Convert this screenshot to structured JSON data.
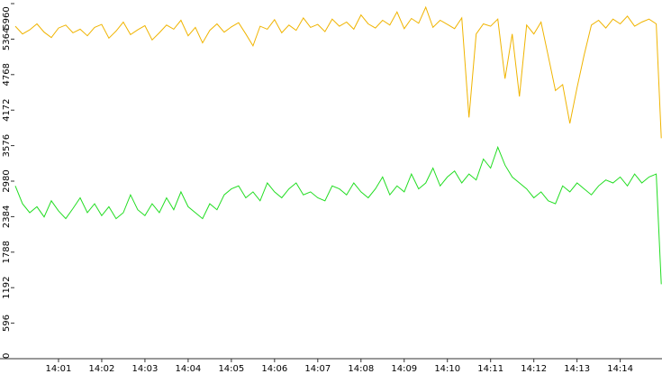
{
  "chart_data": {
    "type": "line",
    "x": [
      0,
      10,
      20,
      30,
      40,
      50,
      60,
      70,
      80,
      90,
      100,
      110,
      120,
      130,
      140,
      150,
      160,
      170,
      180,
      190,
      200,
      210,
      220,
      230,
      240,
      250,
      260,
      270,
      280,
      290,
      300,
      310,
      320,
      330,
      340,
      350,
      360,
      370,
      380,
      390,
      400,
      410,
      420,
      430,
      440,
      450,
      460,
      470,
      480,
      490,
      500,
      510,
      520,
      530,
      540,
      550,
      560,
      570,
      580,
      590,
      600,
      610,
      620,
      630,
      640,
      650,
      660,
      670,
      680,
      690,
      700,
      710,
      720,
      730,
      740,
      750,
      760,
      770,
      780,
      790,
      800,
      810,
      820,
      830,
      840,
      850,
      860,
      870,
      880,
      890,
      897
    ],
    "series": [
      {
        "color": "#f0b400",
        "values": [
          5580,
          5450,
          5520,
          5620,
          5480,
          5390,
          5550,
          5600,
          5470,
          5530,
          5420,
          5560,
          5610,
          5380,
          5500,
          5650,
          5440,
          5520,
          5590,
          5350,
          5470,
          5600,
          5530,
          5680,
          5420,
          5560,
          5300,
          5510,
          5620,
          5480,
          5570,
          5640,
          5450,
          5250,
          5580,
          5530,
          5690,
          5470,
          5600,
          5510,
          5720,
          5560,
          5610,
          5490,
          5700,
          5580,
          5650,
          5530,
          5770,
          5620,
          5550,
          5680,
          5600,
          5820,
          5540,
          5710,
          5630,
          5900,
          5560,
          5680,
          5610,
          5540,
          5720,
          4050,
          5450,
          5620,
          5580,
          5700,
          4700,
          5450,
          4400,
          5600,
          5450,
          5650,
          5080,
          4500,
          4600,
          3950,
          4550,
          5100,
          5600,
          5680,
          5550,
          5700,
          5620,
          5750,
          5580,
          5650,
          5700,
          5620,
          3700
        ]
      },
      {
        "color": "#22dd22",
        "values": [
          2900,
          2600,
          2450,
          2550,
          2380,
          2650,
          2480,
          2350,
          2520,
          2700,
          2450,
          2600,
          2400,
          2550,
          2350,
          2450,
          2750,
          2500,
          2400,
          2600,
          2450,
          2700,
          2500,
          2800,
          2550,
          2450,
          2350,
          2600,
          2500,
          2750,
          2850,
          2900,
          2700,
          2800,
          2650,
          2950,
          2800,
          2700,
          2850,
          2950,
          2750,
          2800,
          2700,
          2650,
          2900,
          2850,
          2750,
          2950,
          2800,
          2700,
          2850,
          3050,
          2750,
          2900,
          2800,
          3100,
          2850,
          2950,
          3200,
          2900,
          3050,
          3150,
          2950,
          3100,
          3000,
          3350,
          3200,
          3550,
          3250,
          3050,
          2950,
          2850,
          2700,
          2800,
          2650,
          2600,
          2900,
          2800,
          2950,
          2850,
          2750,
          2900,
          3000,
          2950,
          3050,
          2900,
          3100,
          2950,
          3050,
          3100,
          1250
        ]
      }
    ],
    "xlim": [
      0,
      898
    ],
    "xticks": [
      {
        "value": 60,
        "label": "14:01"
      },
      {
        "value": 120,
        "label": "14:02"
      },
      {
        "value": 180,
        "label": "14:03"
      },
      {
        "value": 240,
        "label": "14:04"
      },
      {
        "value": 300,
        "label": "14:05"
      },
      {
        "value": 360,
        "label": "14:06"
      },
      {
        "value": 420,
        "label": "14:07"
      },
      {
        "value": 480,
        "label": "14:08"
      },
      {
        "value": 540,
        "label": "14:09"
      },
      {
        "value": 600,
        "label": "14:10"
      },
      {
        "value": 660,
        "label": "14:11"
      },
      {
        "value": 720,
        "label": "14:12"
      },
      {
        "value": 780,
        "label": "14:13"
      },
      {
        "value": 840,
        "label": "14:14"
      }
    ],
    "ylim": [
      0,
      5960
    ],
    "yticks": [
      0,
      596,
      1192,
      1788,
      2384,
      2980,
      3576,
      4172,
      4768,
      5364,
      5960
    ]
  }
}
